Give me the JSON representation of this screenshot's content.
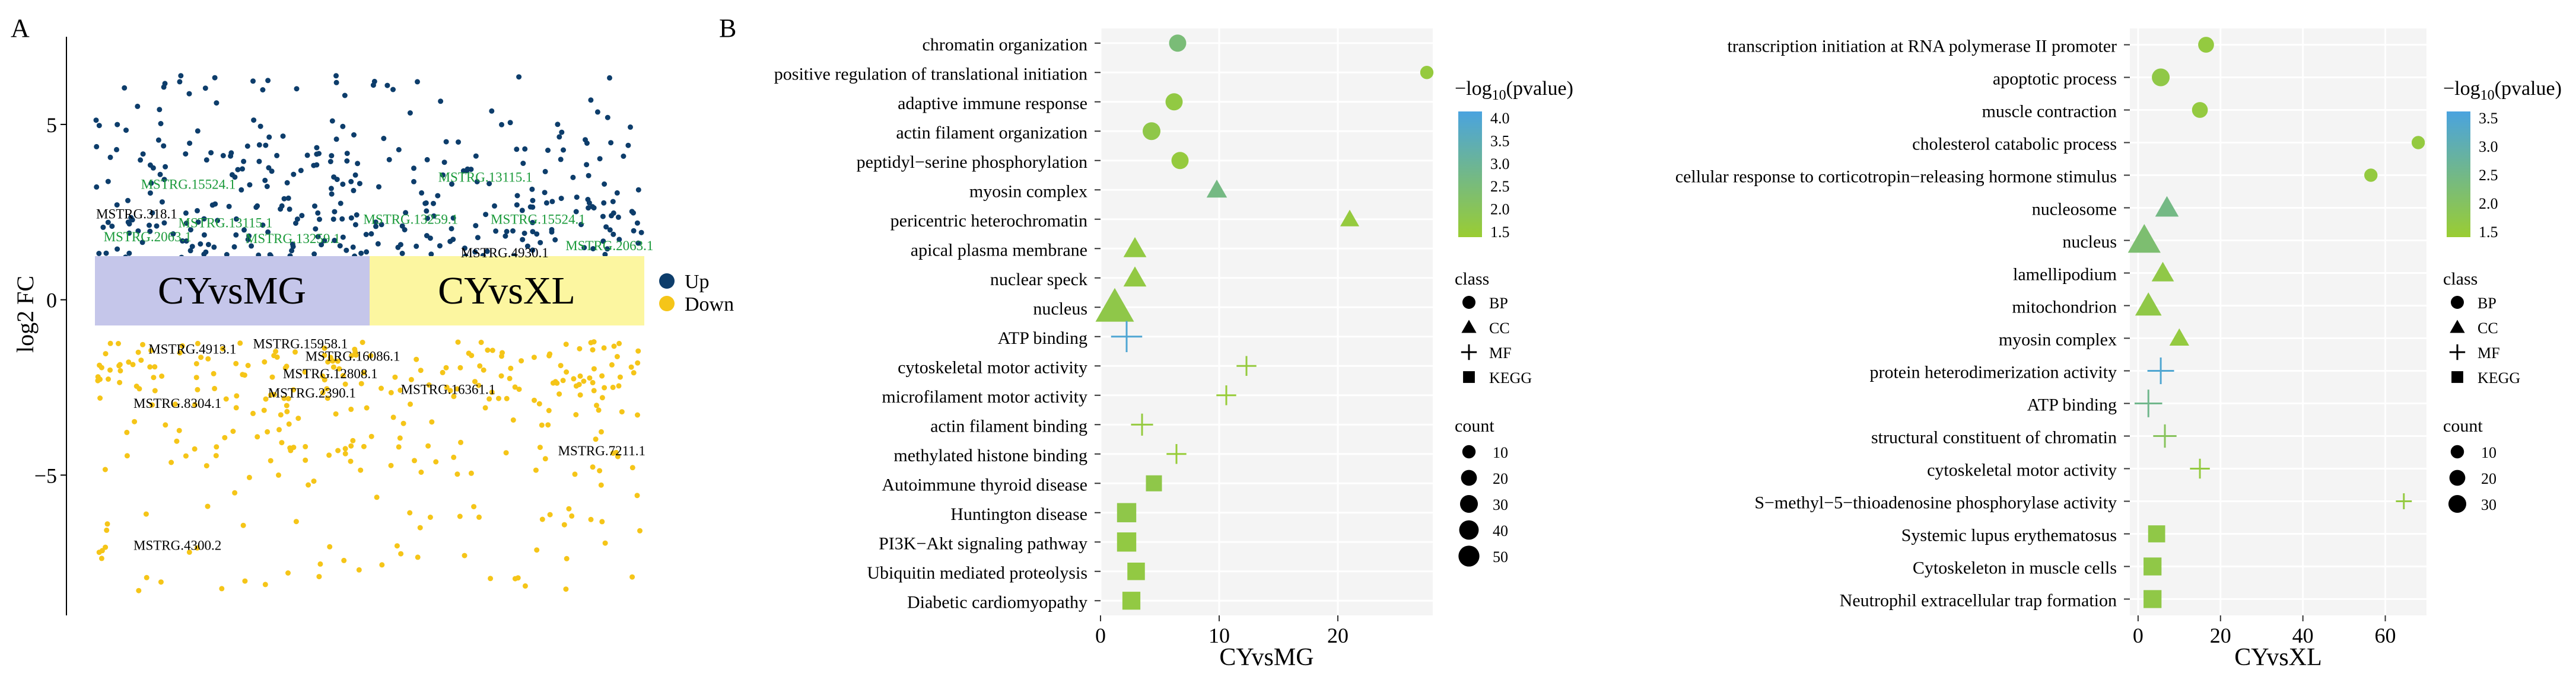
{
  "colors": {
    "up": "#0d3d6b",
    "down": "#f5c518",
    "green_label": "#1a9a3a",
    "black_label": "#000000",
    "cyvsmg_band": "#c5c6ea",
    "cyvsxl_band": "#fcf6a0",
    "grad_low": "#9acd32",
    "grad_high": "#4aa3df",
    "grid": "#ececec",
    "panel_bg": "#f4f4f4"
  },
  "chart_data": [
    {
      "id": "A",
      "panel_label": "A",
      "type": "scatter",
      "ylabel": "log2 FC",
      "ylim": [
        -9,
        7.5
      ],
      "yticks": [
        -5,
        0,
        5
      ],
      "groups": [
        "CYvsMG",
        "CYvsXL"
      ],
      "legend": [
        {
          "name": "Up",
          "color": "#0d3d6b"
        },
        {
          "name": "Down",
          "color": "#f5c518"
        }
      ],
      "labels": [
        {
          "text": "MSTRG.15524.1",
          "group": 0,
          "xpos": 0.3,
          "y": 3.3,
          "color": "green"
        },
        {
          "text": "MSTRG.318.1",
          "group": 0,
          "xpos": 0.0,
          "y": 2.45,
          "color": "black"
        },
        {
          "text": "MSTRG.13115.1",
          "group": 0,
          "xpos": 0.55,
          "y": 2.2,
          "color": "green"
        },
        {
          "text": "MSTRG.2063.1",
          "group": 0,
          "xpos": 0.05,
          "y": 1.8,
          "color": "green"
        },
        {
          "text": "MSTRG.13259.1",
          "group": 0,
          "xpos": 1.0,
          "y": 1.75,
          "color": "green"
        },
        {
          "text": "MSTRG.4913.1",
          "group": 0,
          "xpos": 0.35,
          "y": -1.4,
          "color": "black"
        },
        {
          "text": "MSTRG.15958.1",
          "group": 0,
          "xpos": 1.05,
          "y": -1.25,
          "color": "black"
        },
        {
          "text": "MSTRG.16086.1",
          "group": 0,
          "xpos": 1.4,
          "y": -1.6,
          "color": "black"
        },
        {
          "text": "MSTRG.12808.1",
          "group": 0,
          "xpos": 1.25,
          "y": -2.1,
          "color": "black"
        },
        {
          "text": "MSTRG.2390.1",
          "group": 0,
          "xpos": 1.15,
          "y": -2.65,
          "color": "black"
        },
        {
          "text": "MSTRG.8304.1",
          "group": 0,
          "xpos": 0.25,
          "y": -2.95,
          "color": "black"
        },
        {
          "text": "MSTRG.4300.2",
          "group": 0,
          "xpos": 0.25,
          "y": -7.0,
          "color": "black"
        },
        {
          "text": "MSTRG.13115.1",
          "group": 1,
          "xpos": 0.45,
          "y": 3.5,
          "color": "green"
        },
        {
          "text": "MSTRG.13259.1",
          "group": 1,
          "xpos": -0.05,
          "y": 2.3,
          "color": "green"
        },
        {
          "text": "MSTRG.15524.1",
          "group": 1,
          "xpos": 0.8,
          "y": 2.3,
          "color": "green"
        },
        {
          "text": "MSTRG.2063.1",
          "group": 1,
          "xpos": 1.3,
          "y": 1.55,
          "color": "green"
        },
        {
          "text": "MSTRG.4930.1",
          "group": 1,
          "xpos": 0.6,
          "y": 1.35,
          "color": "black"
        },
        {
          "text": "MSTRG.16361.1",
          "group": 1,
          "xpos": 0.2,
          "y": -2.55,
          "color": "black"
        },
        {
          "text": "MSTRG.7211.1",
          "group": 1,
          "xpos": 1.25,
          "y": -4.3,
          "color": "black"
        }
      ]
    },
    {
      "id": "B1",
      "panel_label": "B",
      "type": "scatter",
      "xlabel": "CYvsMG",
      "xlim": [
        0,
        28
      ],
      "xticks": [
        0,
        10,
        20
      ],
      "color_title": "−log10(pvalue)",
      "color_ticks": [
        "4.0",
        "3.5",
        "3.0",
        "2.5",
        "2.0",
        "1.5"
      ],
      "color_range": [
        1.3,
        4.3
      ],
      "class_title": "class",
      "classes": [
        "BP",
        "CC",
        "MF",
        "KEGG"
      ],
      "count_title": "count",
      "count_ticks": [
        10,
        20,
        30,
        40,
        50
      ],
      "terms": [
        {
          "name": "chromatin organization",
          "class": "BP",
          "x": 6.5,
          "count": 8,
          "p": 2.5
        },
        {
          "name": "positive regulation of translational initiation",
          "class": "BP",
          "x": 27.5,
          "count": 3,
          "p": 1.5
        },
        {
          "name": "adaptive immune response",
          "class": "BP",
          "x": 6.2,
          "count": 8,
          "p": 1.6
        },
        {
          "name": "actin filament organization",
          "class": "BP",
          "x": 4.3,
          "count": 9,
          "p": 1.7
        },
        {
          "name": "peptidyl−serine phosphorylation",
          "class": "BP",
          "x": 6.7,
          "count": 8,
          "p": 1.5
        },
        {
          "name": "myosin complex",
          "class": "CC",
          "x": 9.8,
          "count": 9,
          "p": 2.7
        },
        {
          "name": "pericentric heterochromatin",
          "class": "CC",
          "x": 21.0,
          "count": 7,
          "p": 1.5
        },
        {
          "name": "apical plasma membrane",
          "class": "CC",
          "x": 2.9,
          "count": 13,
          "p": 1.6
        },
        {
          "name": "nuclear speck",
          "class": "CC",
          "x": 2.9,
          "count": 13,
          "p": 1.6
        },
        {
          "name": "nucleus",
          "class": "CC",
          "x": 1.2,
          "count": 55,
          "p": 1.7
        },
        {
          "name": "ATP binding",
          "class": "MF",
          "x": 2.2,
          "count": 28,
          "p": 4.1
        },
        {
          "name": "cytoskeletal motor activity",
          "class": "MF",
          "x": 12.3,
          "count": 7,
          "p": 1.5
        },
        {
          "name": "microfilament motor activity",
          "class": "MF",
          "x": 10.6,
          "count": 7,
          "p": 1.4
        },
        {
          "name": "actin filament binding",
          "class": "MF",
          "x": 3.5,
          "count": 10,
          "p": 1.5
        },
        {
          "name": "methylated histone binding",
          "class": "MF",
          "x": 6.4,
          "count": 7,
          "p": 1.4
        },
        {
          "name": "Autoimmune thyroid disease",
          "class": "KEGG",
          "x": 4.5,
          "count": 9,
          "p": 1.7
        },
        {
          "name": "Huntington disease",
          "class": "KEGG",
          "x": 2.2,
          "count": 16,
          "p": 1.7
        },
        {
          "name": "PI3K−Akt signaling pathway",
          "class": "KEGG",
          "x": 2.2,
          "count": 16,
          "p": 1.6
        },
        {
          "name": "Ubiquitin mediated proteolysis",
          "class": "KEGG",
          "x": 3.0,
          "count": 12,
          "p": 1.6
        },
        {
          "name": "Diabetic cardiomyopathy",
          "class": "KEGG",
          "x": 2.6,
          "count": 13,
          "p": 1.6
        }
      ]
    },
    {
      "id": "B2",
      "type": "scatter",
      "xlabel": "CYvsXL",
      "xlim": [
        -2,
        70
      ],
      "xticks": [
        0,
        20,
        40,
        60
      ],
      "color_title": "−log10(pvalue)",
      "color_ticks": [
        "3.5",
        "3.0",
        "2.5",
        "2.0",
        "1.5"
      ],
      "color_range": [
        1.3,
        3.8
      ],
      "class_title": "class",
      "classes": [
        "BP",
        "CC",
        "MF",
        "KEGG"
      ],
      "count_title": "count",
      "count_ticks": [
        10,
        20,
        30
      ],
      "terms": [
        {
          "name": "transcription initiation at RNA polymerase II promoter",
          "class": "BP",
          "x": 16.5,
          "count": 6,
          "p": 1.5
        },
        {
          "name": "apoptotic process",
          "class": "BP",
          "x": 5.5,
          "count": 9,
          "p": 1.6
        },
        {
          "name": "muscle contraction",
          "class": "BP",
          "x": 15.0,
          "count": 6,
          "p": 1.5
        },
        {
          "name": "cholesterol catabolic process",
          "class": "BP",
          "x": 68.0,
          "count": 3,
          "p": 1.5
        },
        {
          "name": "cellular response to corticotropin−releasing hormone stimulus",
          "class": "BP",
          "x": 56.5,
          "count": 3,
          "p": 1.5
        },
        {
          "name": "nucleosome",
          "class": "CC",
          "x": 7.0,
          "count": 14,
          "p": 2.5
        },
        {
          "name": "nucleus",
          "class": "CC",
          "x": 1.5,
          "count": 36,
          "p": 2.2
        },
        {
          "name": "lamellipodium",
          "class": "CC",
          "x": 6.0,
          "count": 12,
          "p": 1.6
        },
        {
          "name": "mitochondrion",
          "class": "CC",
          "x": 2.5,
          "count": 20,
          "p": 1.6
        },
        {
          "name": "myosin complex",
          "class": "CC",
          "x": 10.0,
          "count": 8,
          "p": 1.5
        },
        {
          "name": "protein heterodimerization activity",
          "class": "MF",
          "x": 5.5,
          "count": 18,
          "p": 3.6
        },
        {
          "name": "ATP binding",
          "class": "MF",
          "x": 2.5,
          "count": 20,
          "p": 2.6
        },
        {
          "name": "structural constituent of chromatin",
          "class": "MF",
          "x": 6.5,
          "count": 12,
          "p": 1.9
        },
        {
          "name": "cytoskeletal motor activity",
          "class": "MF",
          "x": 15.0,
          "count": 7,
          "p": 1.5
        },
        {
          "name": "S−methyl−5−thioadenosine phosphorylase activity",
          "class": "MF",
          "x": 64.5,
          "count": 3,
          "p": 1.5
        },
        {
          "name": "Systemic lupus erythematosus",
          "class": "KEGG",
          "x": 4.5,
          "count": 11,
          "p": 1.6
        },
        {
          "name": "Cytoskeleton in muscle cells",
          "class": "KEGG",
          "x": 3.5,
          "count": 13,
          "p": 1.6
        },
        {
          "name": "Neutrophil extracellular trap formation",
          "class": "KEGG",
          "x": 3.5,
          "count": 13,
          "p": 1.6
        }
      ]
    }
  ]
}
